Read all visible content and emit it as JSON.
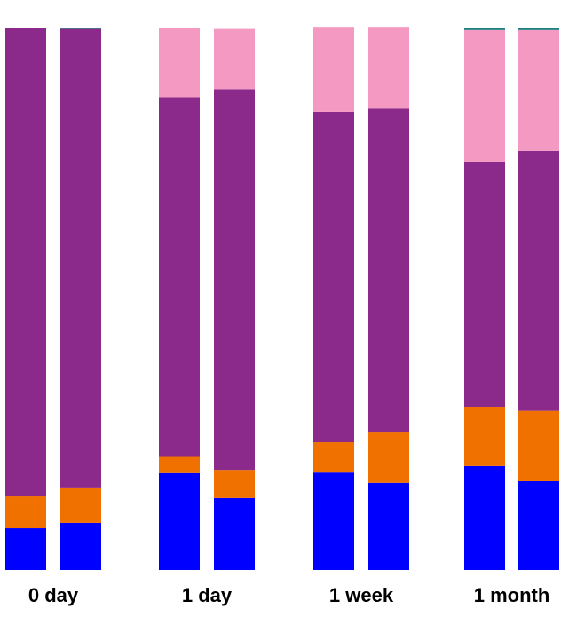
{
  "chart_data": {
    "type": "stacked_bar",
    "categories": [
      "0 day",
      null,
      "1 day",
      null,
      "1 week",
      null,
      "1 month",
      null
    ],
    "ylim": [
      0,
      100
    ],
    "series": [
      {
        "color": "#0000ff",
        "values": [
          7.7,
          8.7,
          17.9,
          13.3,
          18.0,
          16.1,
          19.2,
          16.4
        ]
      },
      {
        "color": "#f07000",
        "values": [
          5.9,
          6.4,
          3.0,
          5.2,
          5.6,
          9.3,
          10.8,
          13.0
        ]
      },
      {
        "color": "#8b2a8a",
        "values": [
          86.4,
          84.8,
          66.4,
          70.3,
          61.0,
          59.8,
          45.4,
          48.0
        ]
      },
      {
        "color": "#f49ac2",
        "values": [
          0,
          0,
          12.8,
          11.1,
          15.7,
          15.1,
          24.3,
          22.3
        ]
      },
      {
        "color": "#1a8080",
        "values": [
          0,
          0.2,
          0,
          0,
          0,
          0,
          0.3,
          0.3
        ]
      }
    ]
  }
}
